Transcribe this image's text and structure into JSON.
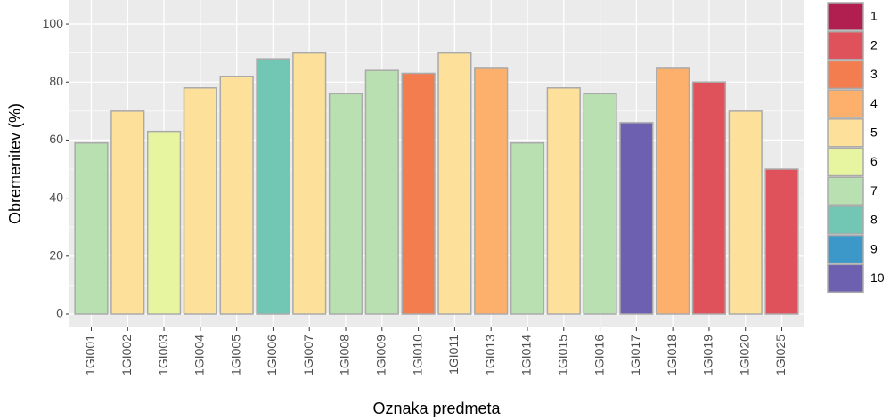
{
  "chart_data": {
    "type": "bar",
    "x_label": "Oznaka predmeta",
    "y_label": "Obremenitev (%)",
    "categories": [
      "1GI001",
      "1GI002",
      "1GI003",
      "1GI004",
      "1GI005",
      "1GI006",
      "1GI007",
      "1GI008",
      "1GI009",
      "1GI010",
      "1GI011",
      "1GI013",
      "1GI014",
      "1GI015",
      "1GI016",
      "1GI017",
      "1GI018",
      "1GI019",
      "1GI020",
      "1GI025"
    ],
    "values": [
      59,
      70,
      63,
      78,
      82,
      88,
      90,
      76,
      84,
      83,
      90,
      85,
      59,
      78,
      76,
      66,
      85,
      80,
      70,
      50
    ],
    "colors": [
      "#b9e0b0",
      "#fde09a",
      "#e8f5a0",
      "#fde09a",
      "#fde09a",
      "#72c6b4",
      "#fde09a",
      "#b9e0b0",
      "#b9e0b0",
      "#f47d50",
      "#fde09a",
      "#fdb06b",
      "#b9e0b0",
      "#fde09a",
      "#b9e0b0",
      "#6e60b0",
      "#fdb06b",
      "#e0525b",
      "#fde09a",
      "#e0525b"
    ],
    "legend": [
      {
        "name": "1",
        "color": "#b01f4f"
      },
      {
        "name": "2",
        "color": "#e0525b"
      },
      {
        "name": "3",
        "color": "#f47d50"
      },
      {
        "name": "4",
        "color": "#fdb06b"
      },
      {
        "name": "5",
        "color": "#fde09a"
      },
      {
        "name": "6",
        "color": "#e8f5a0"
      },
      {
        "name": "7",
        "color": "#b9e0b0"
      },
      {
        "name": "8",
        "color": "#72c6b4"
      },
      {
        "name": "9",
        "color": "#3c98c8"
      },
      {
        "name": "10",
        "color": "#6e60b0"
      }
    ],
    "ylim": [
      -4.6,
      108.3
    ],
    "yticks": [
      0,
      20,
      40,
      60,
      80,
      100
    ],
    "grid": true
  }
}
